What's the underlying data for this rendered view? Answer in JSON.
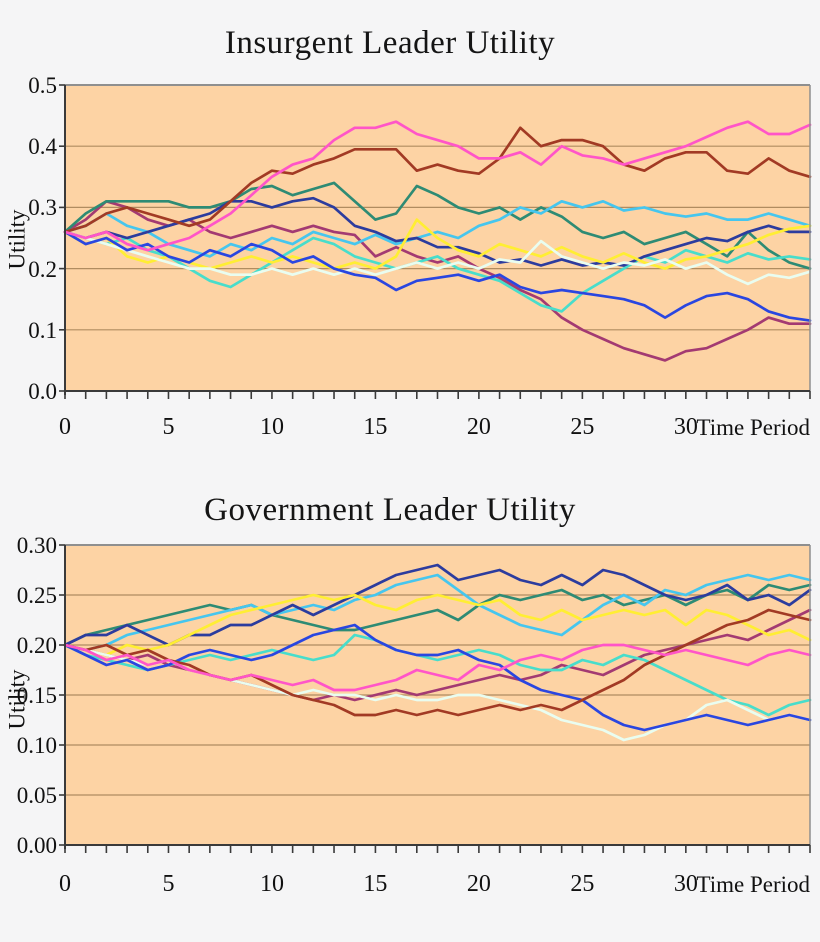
{
  "accent_colors": {
    "plot_background": "#fdd3a4",
    "page_background": "#f5f5f6",
    "gridline": "#b08c60",
    "axis_line": "#3a3a3a",
    "plot_border": "#8f8f8f"
  },
  "chart_data": [
    {
      "type": "line",
      "title": "Insurgent Leader Utility",
      "xlabel": "Time Period",
      "ylabel": "Utility",
      "ylim": [
        0.0,
        0.5
      ],
      "xlim": [
        0,
        36
      ],
      "grid": "horizontal",
      "legend_position": "none",
      "y_ticks": [
        {
          "value": 0.5,
          "label": "0.5"
        },
        {
          "value": 0.4,
          "label": "0.4"
        },
        {
          "value": 0.3,
          "label": "0.3"
        },
        {
          "value": 0.2,
          "label": "0.2"
        },
        {
          "value": 0.1,
          "label": "0.1"
        },
        {
          "value": 0.0,
          "label": "0.0"
        }
      ],
      "x_major_ticks": [
        {
          "value": 0,
          "label": "0"
        },
        {
          "value": 5,
          "label": "5"
        },
        {
          "value": 10,
          "label": "10"
        },
        {
          "value": 15,
          "label": "15"
        },
        {
          "value": 20,
          "label": "20"
        },
        {
          "value": 25,
          "label": "25"
        },
        {
          "value": 30,
          "label": "30"
        }
      ],
      "x_minor_tick_step": 1,
      "series": [
        {
          "name": "purple",
          "color": "#a33a72",
          "values": [
            0.26,
            0.28,
            0.31,
            0.3,
            0.28,
            0.27,
            0.28,
            0.26,
            0.25,
            0.26,
            0.27,
            0.26,
            0.27,
            0.26,
            0.255,
            0.22,
            0.235,
            0.22,
            0.21,
            0.22,
            0.2,
            0.185,
            0.165,
            0.15,
            0.12,
            0.1,
            0.085,
            0.07,
            0.06,
            0.05,
            0.065,
            0.07,
            0.085,
            0.1,
            0.12,
            0.11,
            0.11
          ]
        },
        {
          "name": "teal",
          "color": "#2e8b74",
          "values": [
            0.26,
            0.29,
            0.31,
            0.31,
            0.31,
            0.31,
            0.3,
            0.3,
            0.31,
            0.33,
            0.335,
            0.32,
            0.33,
            0.34,
            0.31,
            0.28,
            0.29,
            0.335,
            0.32,
            0.3,
            0.29,
            0.3,
            0.28,
            0.3,
            0.285,
            0.26,
            0.25,
            0.26,
            0.24,
            0.25,
            0.26,
            0.24,
            0.22,
            0.26,
            0.23,
            0.21,
            0.2
          ]
        },
        {
          "name": "turquoise",
          "color": "#48ddcb",
          "values": [
            0.26,
            0.25,
            0.24,
            0.25,
            0.23,
            0.22,
            0.2,
            0.18,
            0.17,
            0.19,
            0.21,
            0.23,
            0.25,
            0.24,
            0.22,
            0.21,
            0.2,
            0.21,
            0.22,
            0.2,
            0.19,
            0.18,
            0.16,
            0.14,
            0.13,
            0.16,
            0.18,
            0.2,
            0.22,
            0.21,
            0.23,
            0.22,
            0.21,
            0.225,
            0.215,
            0.22,
            0.215
          ]
        },
        {
          "name": "cyan",
          "color": "#46c6ee",
          "values": [
            0.26,
            0.27,
            0.29,
            0.27,
            0.26,
            0.24,
            0.23,
            0.22,
            0.24,
            0.23,
            0.25,
            0.24,
            0.26,
            0.25,
            0.24,
            0.255,
            0.24,
            0.25,
            0.26,
            0.25,
            0.27,
            0.28,
            0.3,
            0.29,
            0.31,
            0.3,
            0.31,
            0.295,
            0.3,
            0.29,
            0.285,
            0.29,
            0.28,
            0.28,
            0.29,
            0.28,
            0.27
          ]
        },
        {
          "name": "navy",
          "color": "#2c3c9e",
          "values": [
            0.26,
            0.25,
            0.26,
            0.25,
            0.26,
            0.27,
            0.28,
            0.29,
            0.31,
            0.31,
            0.3,
            0.31,
            0.315,
            0.3,
            0.27,
            0.26,
            0.245,
            0.25,
            0.235,
            0.235,
            0.225,
            0.21,
            0.215,
            0.205,
            0.215,
            0.205,
            0.21,
            0.205,
            0.22,
            0.23,
            0.24,
            0.25,
            0.245,
            0.26,
            0.27,
            0.26,
            0.26
          ]
        },
        {
          "name": "yellow",
          "color": "#ffee33",
          "values": [
            0.26,
            0.24,
            0.25,
            0.22,
            0.21,
            0.22,
            0.21,
            0.2,
            0.21,
            0.22,
            0.21,
            0.22,
            0.21,
            0.2,
            0.21,
            0.2,
            0.22,
            0.28,
            0.25,
            0.23,
            0.22,
            0.24,
            0.23,
            0.22,
            0.235,
            0.22,
            0.21,
            0.225,
            0.21,
            0.2,
            0.215,
            0.22,
            0.23,
            0.24,
            0.255,
            0.265,
            0.27
          ]
        },
        {
          "name": "pale-cyan",
          "color": "#e9fdf0",
          "values": [
            0.26,
            0.25,
            0.24,
            0.23,
            0.22,
            0.21,
            0.2,
            0.2,
            0.19,
            0.19,
            0.2,
            0.19,
            0.2,
            0.19,
            0.2,
            0.19,
            0.2,
            0.21,
            0.2,
            0.21,
            0.2,
            0.215,
            0.21,
            0.245,
            0.22,
            0.21,
            0.2,
            0.21,
            0.205,
            0.215,
            0.2,
            0.21,
            0.19,
            0.175,
            0.19,
            0.185,
            0.195
          ]
        },
        {
          "name": "blue",
          "color": "#2a46e0",
          "values": [
            0.26,
            0.24,
            0.25,
            0.23,
            0.24,
            0.22,
            0.21,
            0.23,
            0.22,
            0.24,
            0.23,
            0.21,
            0.22,
            0.2,
            0.19,
            0.185,
            0.165,
            0.18,
            0.185,
            0.19,
            0.18,
            0.19,
            0.17,
            0.16,
            0.165,
            0.16,
            0.155,
            0.15,
            0.14,
            0.12,
            0.14,
            0.155,
            0.16,
            0.15,
            0.13,
            0.12,
            0.115
          ]
        },
        {
          "name": "dark-red",
          "color": "#a23a24",
          "values": [
            0.26,
            0.27,
            0.29,
            0.3,
            0.29,
            0.28,
            0.27,
            0.28,
            0.31,
            0.34,
            0.36,
            0.355,
            0.37,
            0.38,
            0.395,
            0.395,
            0.395,
            0.36,
            0.37,
            0.36,
            0.355,
            0.38,
            0.43,
            0.4,
            0.41,
            0.41,
            0.4,
            0.37,
            0.36,
            0.38,
            0.39,
            0.39,
            0.36,
            0.355,
            0.38,
            0.36,
            0.35
          ]
        },
        {
          "name": "magenta",
          "color": "#ff55c8",
          "values": [
            0.26,
            0.25,
            0.26,
            0.24,
            0.23,
            0.24,
            0.25,
            0.27,
            0.29,
            0.32,
            0.35,
            0.37,
            0.38,
            0.41,
            0.43,
            0.43,
            0.44,
            0.42,
            0.41,
            0.4,
            0.38,
            0.38,
            0.39,
            0.37,
            0.4,
            0.385,
            0.38,
            0.37,
            0.38,
            0.39,
            0.4,
            0.415,
            0.43,
            0.44,
            0.42,
            0.42,
            0.435
          ]
        }
      ]
    },
    {
      "type": "line",
      "title": "Government Leader Utility",
      "xlabel": "Time Period",
      "ylabel": "Utility",
      "ylim": [
        0.0,
        0.3
      ],
      "xlim": [
        0,
        36
      ],
      "grid": "horizontal",
      "legend_position": "none",
      "y_ticks": [
        {
          "value": 0.3,
          "label": "0.30"
        },
        {
          "value": 0.25,
          "label": "0.25"
        },
        {
          "value": 0.2,
          "label": "0.20"
        },
        {
          "value": 0.15,
          "label": "0.15"
        },
        {
          "value": 0.1,
          "label": "0.10"
        },
        {
          "value": 0.05,
          "label": "0.05"
        },
        {
          "value": 0.0,
          "label": "0.00"
        }
      ],
      "x_major_ticks": [
        {
          "value": 0,
          "label": "0"
        },
        {
          "value": 5,
          "label": "5"
        },
        {
          "value": 10,
          "label": "10"
        },
        {
          "value": 15,
          "label": "15"
        },
        {
          "value": 20,
          "label": "20"
        },
        {
          "value": 25,
          "label": "25"
        },
        {
          "value": 30,
          "label": "30"
        }
      ],
      "x_minor_tick_step": 1,
      "series": [
        {
          "name": "purple",
          "color": "#a33a72",
          "values": [
            0.2,
            0.195,
            0.19,
            0.185,
            0.19,
            0.18,
            0.175,
            0.17,
            0.165,
            0.16,
            0.155,
            0.15,
            0.145,
            0.15,
            0.145,
            0.15,
            0.155,
            0.15,
            0.155,
            0.16,
            0.165,
            0.17,
            0.165,
            0.17,
            0.18,
            0.175,
            0.17,
            0.18,
            0.19,
            0.195,
            0.2,
            0.205,
            0.21,
            0.205,
            0.215,
            0.225,
            0.235
          ]
        },
        {
          "name": "teal",
          "color": "#2e8b74",
          "values": [
            0.2,
            0.21,
            0.215,
            0.22,
            0.225,
            0.23,
            0.235,
            0.24,
            0.235,
            0.24,
            0.23,
            0.225,
            0.22,
            0.215,
            0.215,
            0.22,
            0.225,
            0.23,
            0.235,
            0.225,
            0.24,
            0.25,
            0.245,
            0.25,
            0.255,
            0.245,
            0.25,
            0.24,
            0.245,
            0.25,
            0.24,
            0.25,
            0.255,
            0.245,
            0.26,
            0.255,
            0.26
          ]
        },
        {
          "name": "turquoise",
          "color": "#48ddcb",
          "values": [
            0.2,
            0.19,
            0.185,
            0.18,
            0.175,
            0.18,
            0.185,
            0.19,
            0.185,
            0.19,
            0.195,
            0.19,
            0.185,
            0.19,
            0.21,
            0.205,
            0.195,
            0.19,
            0.185,
            0.19,
            0.195,
            0.19,
            0.18,
            0.175,
            0.175,
            0.185,
            0.18,
            0.19,
            0.185,
            0.175,
            0.165,
            0.155,
            0.145,
            0.14,
            0.13,
            0.14,
            0.145
          ]
        },
        {
          "name": "cyan",
          "color": "#46c6ee",
          "values": [
            0.2,
            0.195,
            0.2,
            0.21,
            0.215,
            0.22,
            0.225,
            0.23,
            0.235,
            0.24,
            0.23,
            0.235,
            0.24,
            0.235,
            0.245,
            0.25,
            0.26,
            0.265,
            0.27,
            0.255,
            0.24,
            0.23,
            0.22,
            0.215,
            0.21,
            0.225,
            0.24,
            0.25,
            0.24,
            0.255,
            0.25,
            0.26,
            0.265,
            0.27,
            0.265,
            0.27,
            0.265
          ]
        },
        {
          "name": "navy",
          "color": "#2c3c9e",
          "values": [
            0.2,
            0.21,
            0.21,
            0.22,
            0.21,
            0.2,
            0.21,
            0.21,
            0.22,
            0.22,
            0.23,
            0.24,
            0.23,
            0.24,
            0.25,
            0.26,
            0.27,
            0.275,
            0.28,
            0.265,
            0.27,
            0.275,
            0.265,
            0.26,
            0.27,
            0.26,
            0.275,
            0.27,
            0.26,
            0.25,
            0.245,
            0.25,
            0.26,
            0.245,
            0.25,
            0.24,
            0.255
          ]
        },
        {
          "name": "yellow",
          "color": "#ffee33",
          "values": [
            0.2,
            0.195,
            0.19,
            0.2,
            0.195,
            0.2,
            0.21,
            0.22,
            0.23,
            0.235,
            0.24,
            0.245,
            0.25,
            0.245,
            0.25,
            0.24,
            0.235,
            0.245,
            0.25,
            0.245,
            0.24,
            0.245,
            0.23,
            0.225,
            0.235,
            0.225,
            0.23,
            0.235,
            0.23,
            0.235,
            0.22,
            0.235,
            0.23,
            0.22,
            0.21,
            0.215,
            0.205
          ]
        },
        {
          "name": "pale-cyan",
          "color": "#e9fdf0",
          "values": [
            0.2,
            0.195,
            0.19,
            0.185,
            0.18,
            0.185,
            0.175,
            0.17,
            0.165,
            0.16,
            0.155,
            0.15,
            0.155,
            0.15,
            0.15,
            0.145,
            0.15,
            0.145,
            0.145,
            0.15,
            0.15,
            0.145,
            0.14,
            0.135,
            0.125,
            0.12,
            0.115,
            0.105,
            0.11,
            0.12,
            0.125,
            0.14,
            0.145,
            0.135,
            0.125,
            0.13,
            0.125
          ]
        },
        {
          "name": "blue",
          "color": "#2a46e0",
          "values": [
            0.2,
            0.19,
            0.18,
            0.185,
            0.175,
            0.18,
            0.19,
            0.195,
            0.19,
            0.185,
            0.19,
            0.2,
            0.21,
            0.215,
            0.22,
            0.205,
            0.195,
            0.19,
            0.19,
            0.195,
            0.185,
            0.18,
            0.165,
            0.155,
            0.15,
            0.145,
            0.13,
            0.12,
            0.115,
            0.12,
            0.125,
            0.13,
            0.125,
            0.12,
            0.125,
            0.13,
            0.125
          ]
        },
        {
          "name": "dark-red",
          "color": "#a23a24",
          "values": [
            0.2,
            0.195,
            0.2,
            0.19,
            0.195,
            0.185,
            0.18,
            0.17,
            0.165,
            0.17,
            0.16,
            0.15,
            0.145,
            0.14,
            0.13,
            0.13,
            0.135,
            0.13,
            0.135,
            0.13,
            0.135,
            0.14,
            0.135,
            0.14,
            0.135,
            0.145,
            0.155,
            0.165,
            0.18,
            0.19,
            0.2,
            0.21,
            0.22,
            0.225,
            0.235,
            0.23,
            0.225
          ]
        },
        {
          "name": "magenta",
          "color": "#ff55c8",
          "values": [
            0.2,
            0.195,
            0.185,
            0.19,
            0.18,
            0.185,
            0.175,
            0.17,
            0.165,
            0.17,
            0.165,
            0.16,
            0.165,
            0.155,
            0.155,
            0.16,
            0.165,
            0.175,
            0.17,
            0.165,
            0.18,
            0.175,
            0.185,
            0.19,
            0.185,
            0.195,
            0.2,
            0.2,
            0.195,
            0.19,
            0.195,
            0.19,
            0.185,
            0.18,
            0.19,
            0.195,
            0.19
          ]
        }
      ]
    }
  ]
}
